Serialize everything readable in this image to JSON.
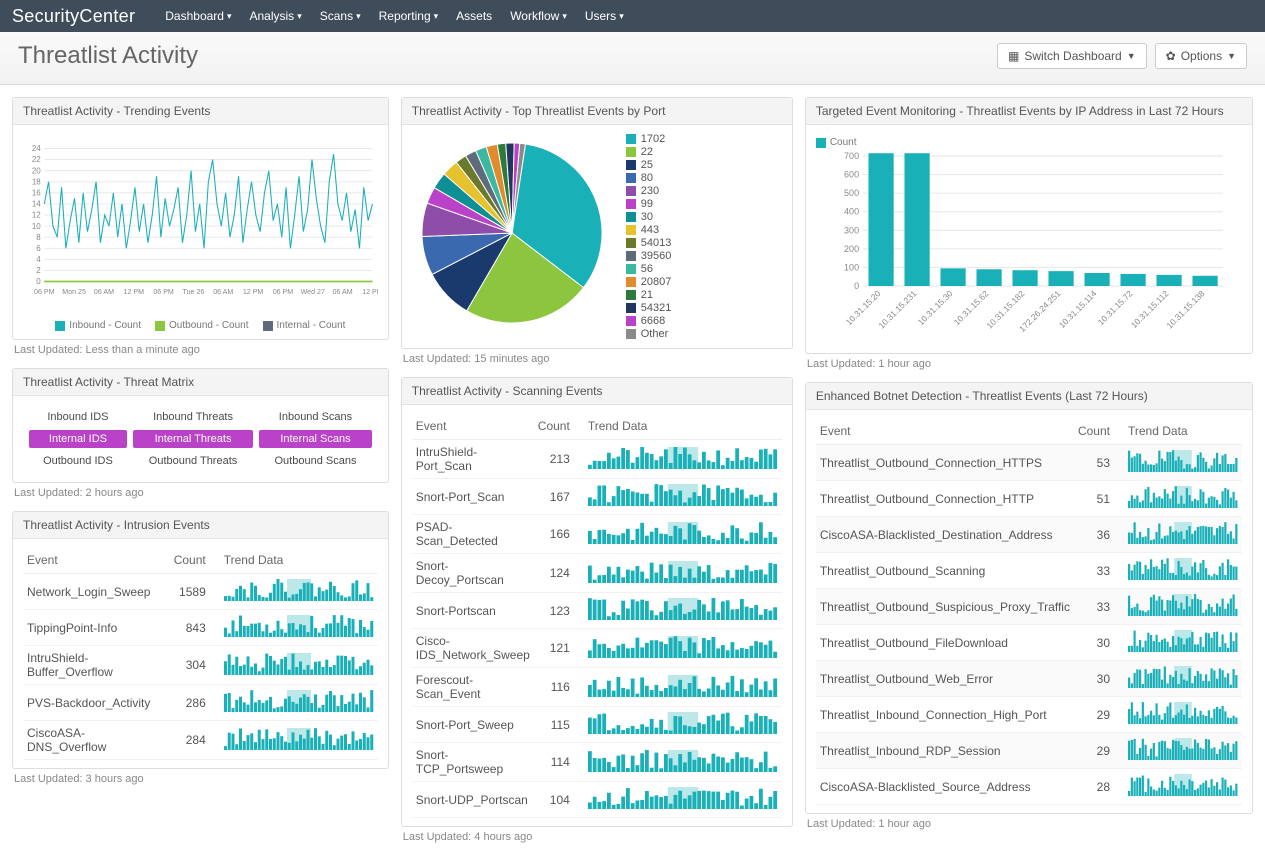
{
  "brand": "SecurityCenter",
  "nav": [
    "Dashboard",
    "Analysis",
    "Scans",
    "Reporting",
    "Assets",
    "Workflow",
    "Users"
  ],
  "nav_has_caret": [
    true,
    true,
    true,
    true,
    false,
    true,
    true
  ],
  "page_title": "Threatlist Activity",
  "btn_switch": "Switch Dashboard",
  "btn_options": "Options",
  "colors": {
    "teal": "#1ab0b8",
    "teal_dark": "#0e8f96",
    "green": "#8cc63f",
    "navy": "#1a3a6e",
    "blue": "#3a69b0",
    "purple": "#8e4da8",
    "orange": "#e08b2e",
    "grey": "#8a8a8a",
    "yellow": "#e6c22e",
    "olive": "#6b7a2a",
    "slate": "#5d6b7a",
    "mint": "#3ab8a0",
    "green2": "#2e7a3a",
    "navy2": "#22355f",
    "magenta": "#b942c9",
    "lightgrey": "#b0b0b0",
    "gridline": "#e6e6e6",
    "axis_text": "#888888"
  },
  "trending": {
    "title": "Threatlist Activity - Trending Events",
    "y_max": 24,
    "y_step": 2,
    "x_labels": [
      "06 PM",
      "Mon 25",
      "06 AM",
      "12 PM",
      "06 PM",
      "Tue 26",
      "06 AM",
      "12 PM",
      "06 PM",
      "Wed 27",
      "06 AM",
      "12 PM"
    ],
    "series": [
      14,
      18,
      10,
      8,
      17,
      6,
      11,
      15,
      7,
      16,
      9,
      13,
      18,
      7,
      12,
      10,
      16,
      8,
      14,
      6,
      11,
      17,
      9,
      14,
      7,
      12,
      19,
      8,
      15,
      10,
      13,
      17,
      7,
      12,
      20,
      9,
      14,
      6,
      18,
      22,
      14,
      10,
      16,
      8,
      12,
      19,
      7,
      13,
      18,
      12,
      9,
      16,
      20,
      11,
      14,
      8,
      17,
      6,
      12,
      19,
      9,
      13,
      22,
      15,
      10,
      7,
      18,
      23,
      14,
      11,
      16,
      9,
      13,
      6,
      17,
      11,
      14
    ],
    "legend": [
      {
        "label": "Inbound - Count",
        "color": "#1ab0b8"
      },
      {
        "label": "Outbound - Count",
        "color": "#8cc63f"
      },
      {
        "label": "Internal - Count",
        "color": "#5d6b7a"
      }
    ],
    "footer": "Last Updated: Less than a minute ago"
  },
  "matrix": {
    "title": "Threatlist Activity - Threat Matrix",
    "cols": [
      "IDS",
      "Threats",
      "Scans"
    ],
    "rows": [
      {
        "prefix": "Inbound",
        "hl": false
      },
      {
        "prefix": "Internal",
        "hl": true
      },
      {
        "prefix": "Outbound",
        "hl": false
      }
    ],
    "footer": "Last Updated: 2 hours ago"
  },
  "intrusion": {
    "title": "Threatlist Activity - Intrusion Events",
    "headers": [
      "Event",
      "Count",
      "Trend Data"
    ],
    "rows": [
      {
        "event": "Network_Login_Sweep",
        "count": 1589
      },
      {
        "event": "TippingPoint-Info",
        "count": 843
      },
      {
        "event": "IntruShield-Buffer_Overflow",
        "count": 304
      },
      {
        "event": "PVS-Backdoor_Activity",
        "count": 286
      },
      {
        "event": "CiscoASA-DNS_Overflow",
        "count": 284
      }
    ],
    "footer": "Last Updated: 3 hours ago"
  },
  "pie": {
    "title": "Threatlist Activity - Top Threatlist Events by Port",
    "slices": [
      {
        "label": "1702",
        "value": 33,
        "color": "#1ab0b8"
      },
      {
        "label": "22",
        "value": 23,
        "color": "#8cc63f"
      },
      {
        "label": "25",
        "value": 9,
        "color": "#1a3a6e"
      },
      {
        "label": "80",
        "value": 7,
        "color": "#3a69b0"
      },
      {
        "label": "230",
        "value": 6,
        "color": "#8e4da8"
      },
      {
        "label": "99",
        "value": 3,
        "color": "#b942c9"
      },
      {
        "label": "30",
        "value": 3,
        "color": "#0e8f96"
      },
      {
        "label": "443",
        "value": 3,
        "color": "#e6c22e"
      },
      {
        "label": "54013",
        "value": 2,
        "color": "#6b7a2a"
      },
      {
        "label": "39560",
        "value": 2,
        "color": "#5d6b7a"
      },
      {
        "label": "56",
        "value": 2,
        "color": "#3ab8a0"
      },
      {
        "label": "20807",
        "value": 2,
        "color": "#e08b2e"
      },
      {
        "label": "21",
        "value": 1.5,
        "color": "#2e7a3a"
      },
      {
        "label": "54321",
        "value": 1.5,
        "color": "#22355f"
      },
      {
        "label": "6668",
        "value": 1,
        "color": "#b942c9"
      },
      {
        "label": "Other",
        "value": 1,
        "color": "#8a8a8a"
      }
    ],
    "footer": "Last Updated: 15 minutes ago"
  },
  "scanning": {
    "title": "Threatlist Activity - Scanning Events",
    "headers": [
      "Event",
      "Count",
      "Trend Data"
    ],
    "rows": [
      {
        "event": "IntruShield-Port_Scan",
        "count": 213
      },
      {
        "event": "Snort-Port_Scan",
        "count": 167
      },
      {
        "event": "PSAD-Scan_Detected",
        "count": 166
      },
      {
        "event": "Snort-Decoy_Portscan",
        "count": 124
      },
      {
        "event": "Snort-Portscan",
        "count": 123
      },
      {
        "event": "Cisco-IDS_Network_Sweep",
        "count": 121
      },
      {
        "event": "Forescout-Scan_Event",
        "count": 116
      },
      {
        "event": "Snort-Port_Sweep",
        "count": 115
      },
      {
        "event": "Snort-TCP_Portsweep",
        "count": 114
      },
      {
        "event": "Snort-UDP_Portscan",
        "count": 104
      }
    ],
    "footer": "Last Updated: 4 hours ago"
  },
  "ipbar": {
    "title": "Targeted Event Monitoring - Threatlist Events by IP Address in Last 72 Hours",
    "legend_label": "Count",
    "y_max": 700,
    "y_step": 100,
    "bars": [
      {
        "label": "10.31.15.20",
        "value": 715
      },
      {
        "label": "10.31.15.231",
        "value": 715
      },
      {
        "label": "10.31.15.30",
        "value": 95
      },
      {
        "label": "10.31.15.62",
        "value": 90
      },
      {
        "label": "10.31.15.182",
        "value": 85
      },
      {
        "label": "172.26.24.251",
        "value": 80
      },
      {
        "label": "10.31.15.114",
        "value": 70
      },
      {
        "label": "10.31.15.72",
        "value": 65
      },
      {
        "label": "10.31.15.112",
        "value": 60
      },
      {
        "label": "10.31.15.138",
        "value": 55
      }
    ],
    "bar_color": "#1ab0b8",
    "footer": "Last Updated: 1 hour ago"
  },
  "botnet": {
    "title": "Enhanced Botnet Detection - Threatlist Events (Last 72 Hours)",
    "headers": [
      "Event",
      "Count",
      "Trend Data"
    ],
    "rows": [
      {
        "event": "Threatlist_Outbound_Connection_HTTPS",
        "count": 53
      },
      {
        "event": "Threatlist_Outbound_Connection_HTTP",
        "count": 51
      },
      {
        "event": "CiscoASA-Blacklisted_Destination_Address",
        "count": 36
      },
      {
        "event": "Threatlist_Outbound_Scanning",
        "count": 33
      },
      {
        "event": "Threatlist_Outbound_Suspicious_Proxy_Traffic",
        "count": 33
      },
      {
        "event": "Threatlist_Outbound_FileDownload",
        "count": 30
      },
      {
        "event": "Threatlist_Outbound_Web_Error",
        "count": 30
      },
      {
        "event": "Threatlist_Inbound_Connection_High_Port",
        "count": 29
      },
      {
        "event": "Threatlist_Inbound_RDP_Session",
        "count": 29
      },
      {
        "event": "CiscoASA-Blacklisted_Source_Address",
        "count": 28
      }
    ],
    "footer": "Last Updated: 1 hour ago"
  },
  "spark_bars": 40,
  "spark_highlight_start": 0.42,
  "spark_highlight_end": 0.58,
  "spark_color": "#1ab0b8",
  "spark_highlight_color": "#bde8ea"
}
